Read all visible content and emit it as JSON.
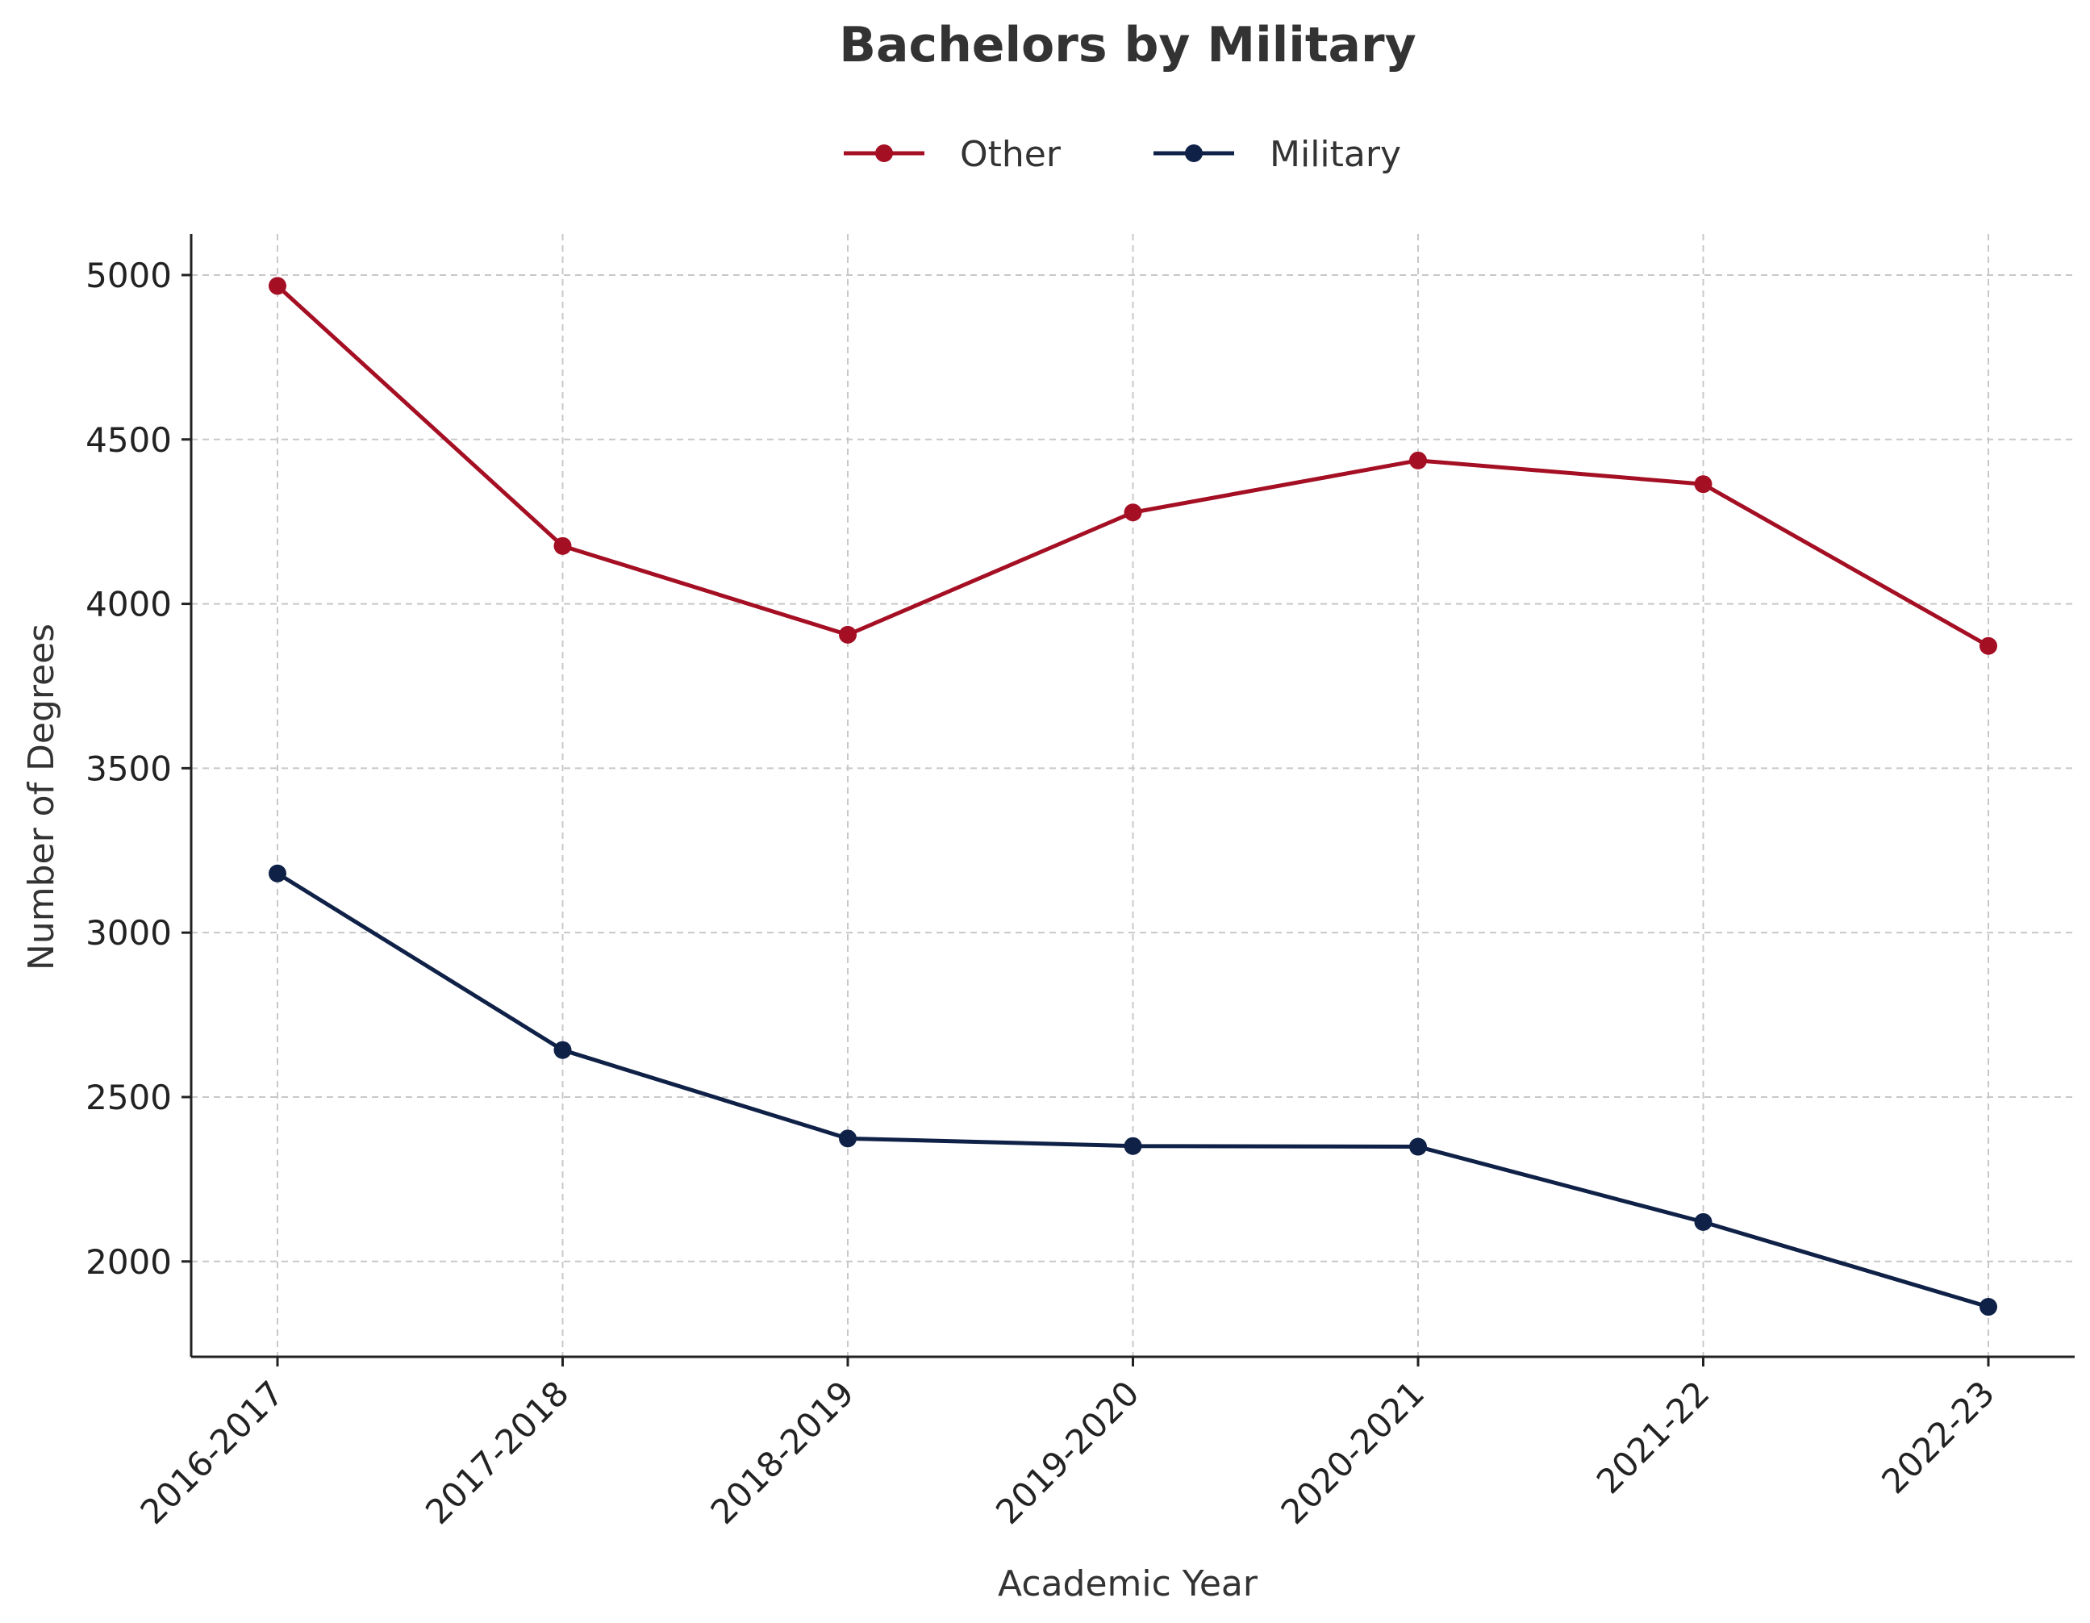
{
  "chart_data": {
    "type": "line",
    "title": "Bachelors by Military",
    "xlabel": "Academic Year",
    "ylabel": "Number of Degrees",
    "categories": [
      "2016-2017",
      "2017-2018",
      "2018-2019",
      "2019-2020",
      "2020-2021",
      "2021-22",
      "2022-23"
    ],
    "ylim": [
      1710,
      5125
    ],
    "yticks": [
      2000,
      2500,
      3000,
      3500,
      4000,
      4500,
      5000
    ],
    "grid": true,
    "legend_position": "top-center",
    "series": [
      {
        "name": "Other",
        "color": "#a50f24",
        "values": [
          4967,
          4176,
          3906,
          4278,
          4436,
          4364,
          3872
        ]
      },
      {
        "name": "Military",
        "color": "#0f2147",
        "values": [
          3180,
          2643,
          2374,
          2351,
          2349,
          2120,
          1862
        ]
      }
    ]
  }
}
